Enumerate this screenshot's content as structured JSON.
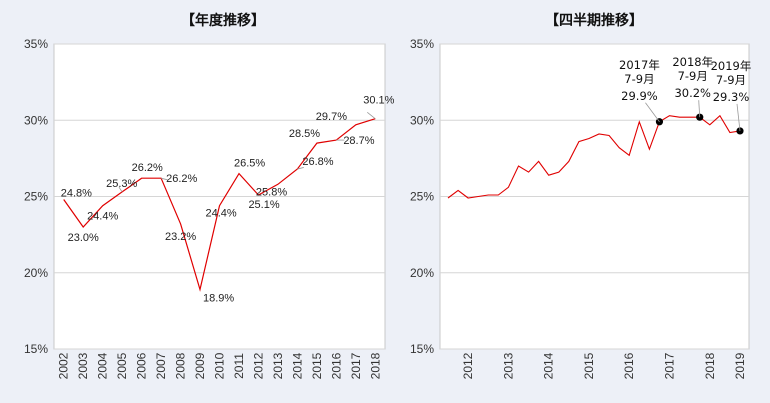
{
  "left_panel": {
    "title": "【年度推移】"
  },
  "right_panel": {
    "title": "【四半期推移】"
  },
  "chart_data": [
    {
      "type": "line",
      "title": "【年度推移】",
      "categories": [
        "2002",
        "2003",
        "2004",
        "2005",
        "2006",
        "2007",
        "2008",
        "2009",
        "2010",
        "2011",
        "2012",
        "2013",
        "2014",
        "2015",
        "2016",
        "2017",
        "2018"
      ],
      "series": [
        {
          "values": [
            24.8,
            23.0,
            24.4,
            25.3,
            26.2,
            26.2,
            23.2,
            18.9,
            24.4,
            26.5,
            25.1,
            25.8,
            26.8,
            28.5,
            28.7,
            29.7,
            30.1
          ],
          "color": "#e00000"
        }
      ],
      "data_labels": [
        "24.8%",
        "23.0%",
        "24.4%",
        "25.3%",
        "26.2%",
        "26.2%",
        "23.2%",
        "18.9%",
        "24.4%",
        "26.5%",
        "25.1%",
        "25.8%",
        "26.8%",
        "28.5%",
        "28.7%",
        "29.7%",
        "30.1%"
      ],
      "ylim": [
        15,
        35
      ],
      "yticks": [
        "15%",
        "20%",
        "25%",
        "30%",
        "35%"
      ],
      "grid": true,
      "legend": "none"
    },
    {
      "type": "line",
      "title": "【四半期推移】",
      "x_ticks": [
        "2012",
        "2013",
        "2014",
        "2015",
        "2016",
        "2017",
        "2018",
        "2019"
      ],
      "series": [
        {
          "values": [
            24.9,
            25.4,
            24.9,
            25.0,
            25.1,
            25.1,
            25.6,
            27.0,
            26.6,
            27.3,
            26.4,
            26.6,
            27.3,
            28.6,
            28.8,
            29.1,
            29.0,
            28.2,
            27.7,
            29.9,
            28.1,
            29.9,
            30.3,
            30.2,
            30.2,
            30.2,
            29.7,
            30.3,
            29.2,
            29.3
          ],
          "color": "#e00000"
        }
      ],
      "ylim": [
        15,
        35
      ],
      "yticks": [
        "15%",
        "20%",
        "25%",
        "30%",
        "35%"
      ],
      "grid": true,
      "legend": "none",
      "annotations": [
        {
          "title_lines": [
            "2017年",
            "7-9月"
          ],
          "value": "29.9%",
          "x_index": 21,
          "y": 29.9
        },
        {
          "title_lines": [
            "2018年",
            "7-9月"
          ],
          "value": "30.2%",
          "x_index": 25,
          "y": 30.2
        },
        {
          "title_lines": [
            "2019年",
            "7-9月"
          ],
          "value": "29.3%",
          "x_index": 29,
          "y": 29.3
        }
      ]
    }
  ]
}
